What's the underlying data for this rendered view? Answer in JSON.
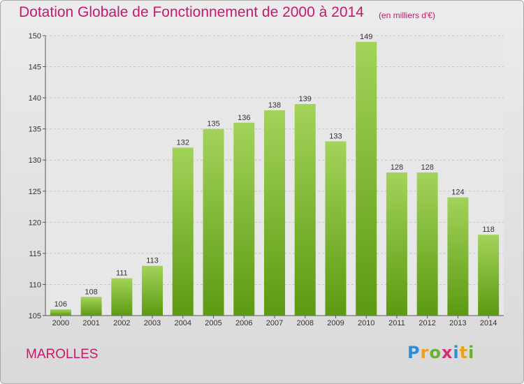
{
  "header": {
    "title": "Dotation Globale de Fonctionnement de 2000 à 2014",
    "unit_note": "(en milliers d'€)"
  },
  "footer": {
    "commune": "MAROLLES",
    "logo": {
      "letters": [
        "P",
        "r",
        "o",
        "x",
        "i",
        "t",
        "i"
      ],
      "colors": [
        "#2f8fd6",
        "#e8a21b",
        "#6ab02b",
        "#d62f6f",
        "#2f8fd6",
        "#e8a21b",
        "#6ab02b"
      ]
    }
  },
  "colors": {
    "title": "#c8186e",
    "bar_top": "#a3d35a",
    "bar_bottom": "#5c9a12",
    "grid": "#c4c4c4"
  },
  "chart_data": {
    "type": "bar",
    "categories": [
      "2000",
      "2001",
      "2002",
      "2003",
      "2004",
      "2005",
      "2006",
      "2007",
      "2008",
      "2009",
      "2010",
      "2011",
      "2012",
      "2013",
      "2014"
    ],
    "values": [
      106,
      108,
      111,
      113,
      132,
      135,
      136,
      138,
      139,
      133,
      149,
      128,
      128,
      124,
      118
    ],
    "title": "Dotation Globale de Fonctionnement de 2000 à 2014",
    "xlabel": "",
    "ylabel": "",
    "ylim": [
      105,
      150
    ],
    "yticks": [
      105,
      110,
      115,
      120,
      125,
      130,
      135,
      140,
      145,
      150
    ],
    "grid": true,
    "data_labels": true
  }
}
